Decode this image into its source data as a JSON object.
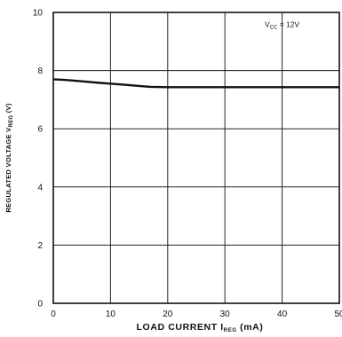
{
  "chart_data": {
    "type": "line",
    "title": "",
    "xlabel": {
      "main": "LOAD CURRENT I",
      "sub": "REG",
      "suffix": " (mA)"
    },
    "ylabel": {
      "main": "REGULATED VOLTAGE V",
      "sub": "REG",
      "suffix": " (V)"
    },
    "xlim": [
      0,
      50
    ],
    "ylim": [
      0,
      10
    ],
    "xticks": [
      0,
      10,
      20,
      30,
      40,
      50
    ],
    "yticks": [
      0,
      2,
      4,
      6,
      8,
      10
    ],
    "grid": true,
    "annotation": {
      "main": "V",
      "sub": "CC",
      "suffix": " = 12V",
      "at": {
        "x": 40,
        "y": 9.5
      }
    },
    "series": [
      {
        "x": [
          0,
          2,
          5,
          8,
          10,
          12,
          15,
          17,
          20,
          25,
          30,
          35,
          40,
          45,
          50
        ],
        "y": [
          7.7,
          7.68,
          7.63,
          7.58,
          7.55,
          7.52,
          7.47,
          7.44,
          7.43,
          7.43,
          7.43,
          7.43,
          7.43,
          7.43,
          7.43
        ]
      }
    ]
  }
}
